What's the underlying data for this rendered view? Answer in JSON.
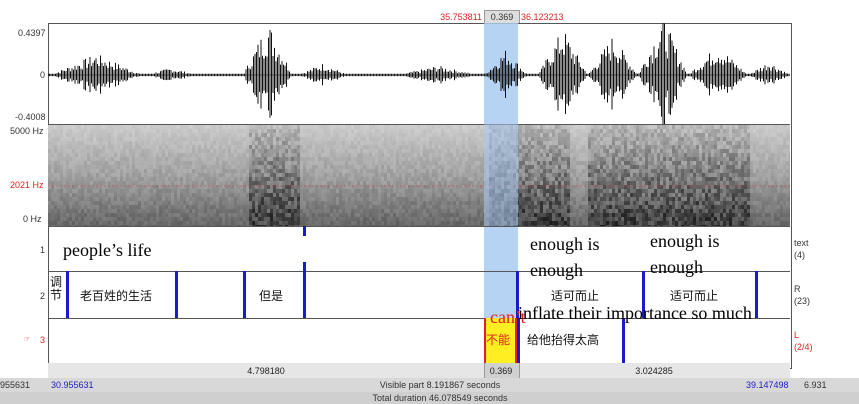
{
  "selection": {
    "start": "35.753811",
    "duration": "0.369",
    "end": "36.123213"
  },
  "waveform": {
    "max": "0.4397",
    "zero": "0",
    "min": "-0.4008"
  },
  "spectrogram": {
    "top": "5000 Hz",
    "cursor": "2021 Hz",
    "bottom": "0 Hz"
  },
  "tiers": [
    {
      "number": "1",
      "name": "text",
      "count": "(4)"
    },
    {
      "number": "2",
      "name": "R",
      "count": "(23)"
    },
    {
      "number": "3",
      "name": "L",
      "count": "(2/4)",
      "prefix": "☞"
    }
  ],
  "tier2_labels": [
    "调节",
    "老百姓的生活",
    "但是",
    "适可而止",
    "适可而止"
  ],
  "tier3_labels": [
    "不能",
    "给他抬得太高"
  ],
  "overlays": {
    "peoples_life": "people’s life",
    "enough1_a": "enough is",
    "enough1_b": "enough",
    "enough2_a": "enough is",
    "enough2_b": "enough",
    "cant": "can’t",
    "inflate": "inflate their importance so much"
  },
  "bottom": {
    "left_duration": "4.798180",
    "sel_duration": "0.369",
    "right_duration": "3.024285",
    "left_edge": "955631",
    "visible_start": "30.955631",
    "visible_part": "Visible part 8.191867 seconds",
    "visible_end": "39.147498",
    "right_edge": "6.931",
    "total": "Total duration 46.078549 seconds"
  }
}
